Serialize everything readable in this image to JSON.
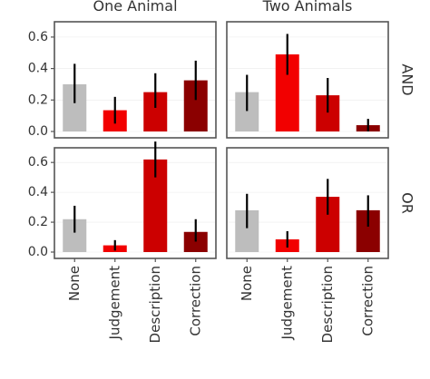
{
  "chart_data": {
    "type": "bar",
    "facet_columns": [
      "One Animal",
      "Two Animals"
    ],
    "facet_rows": [
      "AND",
      "OR"
    ],
    "categories": [
      "None",
      "Judgement",
      "Description",
      "Correction"
    ],
    "colors": [
      "#bdbdbd",
      "#f20000",
      "#cc0000",
      "#8b0000"
    ],
    "y_ticks": [
      "0.0",
      "0.2",
      "0.4",
      "0.6"
    ],
    "ylim": [
      0,
      0.68
    ],
    "panels": [
      {
        "column": "One Animal",
        "row": "AND",
        "values": [
          0.3,
          0.135,
          0.25,
          0.325
        ],
        "error_low": [
          0.18,
          0.05,
          0.15,
          0.2
        ],
        "error_high": [
          0.43,
          0.22,
          0.37,
          0.45
        ]
      },
      {
        "column": "Two Animals",
        "row": "AND",
        "values": [
          0.25,
          0.49,
          0.23,
          0.04
        ],
        "error_low": [
          0.13,
          0.36,
          0.12,
          0.0
        ],
        "error_high": [
          0.36,
          0.62,
          0.34,
          0.08
        ]
      },
      {
        "column": "One Animal",
        "row": "OR",
        "values": [
          0.22,
          0.045,
          0.62,
          0.135
        ],
        "error_low": [
          0.13,
          0.01,
          0.5,
          0.07
        ],
        "error_high": [
          0.31,
          0.08,
          0.74,
          0.22
        ]
      },
      {
        "column": "Two Animals",
        "row": "OR",
        "values": [
          0.28,
          0.085,
          0.37,
          0.28
        ],
        "error_low": [
          0.16,
          0.03,
          0.25,
          0.17
        ],
        "error_high": [
          0.39,
          0.14,
          0.49,
          0.38
        ]
      }
    ],
    "xlabel": "",
    "ylabel": "",
    "grid": true,
    "legend": "none"
  }
}
